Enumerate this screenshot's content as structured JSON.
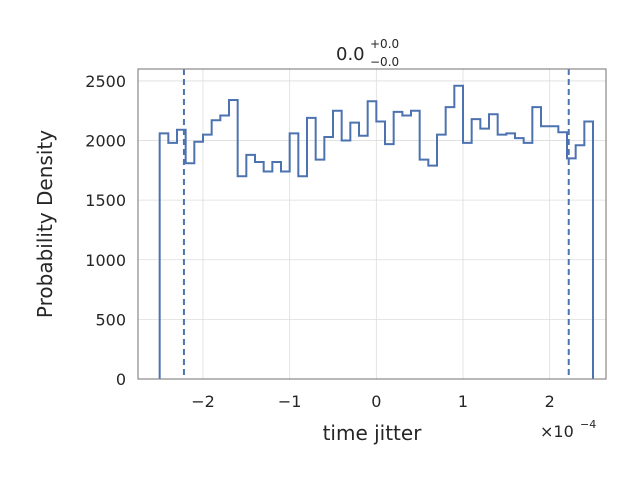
{
  "chart_data": {
    "type": "histogram",
    "title": {
      "value": "0.0",
      "upper": "+0.0",
      "lower": "−0.0"
    },
    "xlabel": "time jitter",
    "ylabel": "Probability Density",
    "x_offset": {
      "base": "×10",
      "exponent": "−4"
    },
    "xlim": [
      -2.75,
      2.65
    ],
    "ylim": [
      0,
      2600
    ],
    "grid": true,
    "x_ticks": [
      -2,
      -1,
      0,
      1,
      2
    ],
    "x_tick_labels": [
      "−2",
      "−1",
      "0",
      "1",
      "2"
    ],
    "y_ticks": [
      0,
      500,
      1000,
      1500,
      2000,
      2500
    ],
    "y_tick_labels": [
      "0",
      "500",
      "1000",
      "1500",
      "2000",
      "2500"
    ],
    "bin_range": [
      -2.5,
      2.5
    ],
    "values": [
      2060,
      1980,
      2090,
      1810,
      1990,
      2050,
      2170,
      2210,
      2340,
      1700,
      1880,
      1820,
      1740,
      1820,
      1740,
      2060,
      1700,
      2190,
      1840,
      2030,
      2250,
      2000,
      2150,
      2040,
      2330,
      2160,
      1970,
      2240,
      2210,
      2250,
      1840,
      1790,
      2050,
      2280,
      2460,
      1980,
      2180,
      2100,
      2220,
      2050,
      2060,
      2020,
      1980,
      2280,
      2120,
      2120,
      2070,
      1850,
      1960,
      2160
    ],
    "quantile_lines": [
      -2.22,
      2.22
    ],
    "line_color": "#4c72b0",
    "grid_color": "#dddddd",
    "spine_color": "#888888"
  }
}
